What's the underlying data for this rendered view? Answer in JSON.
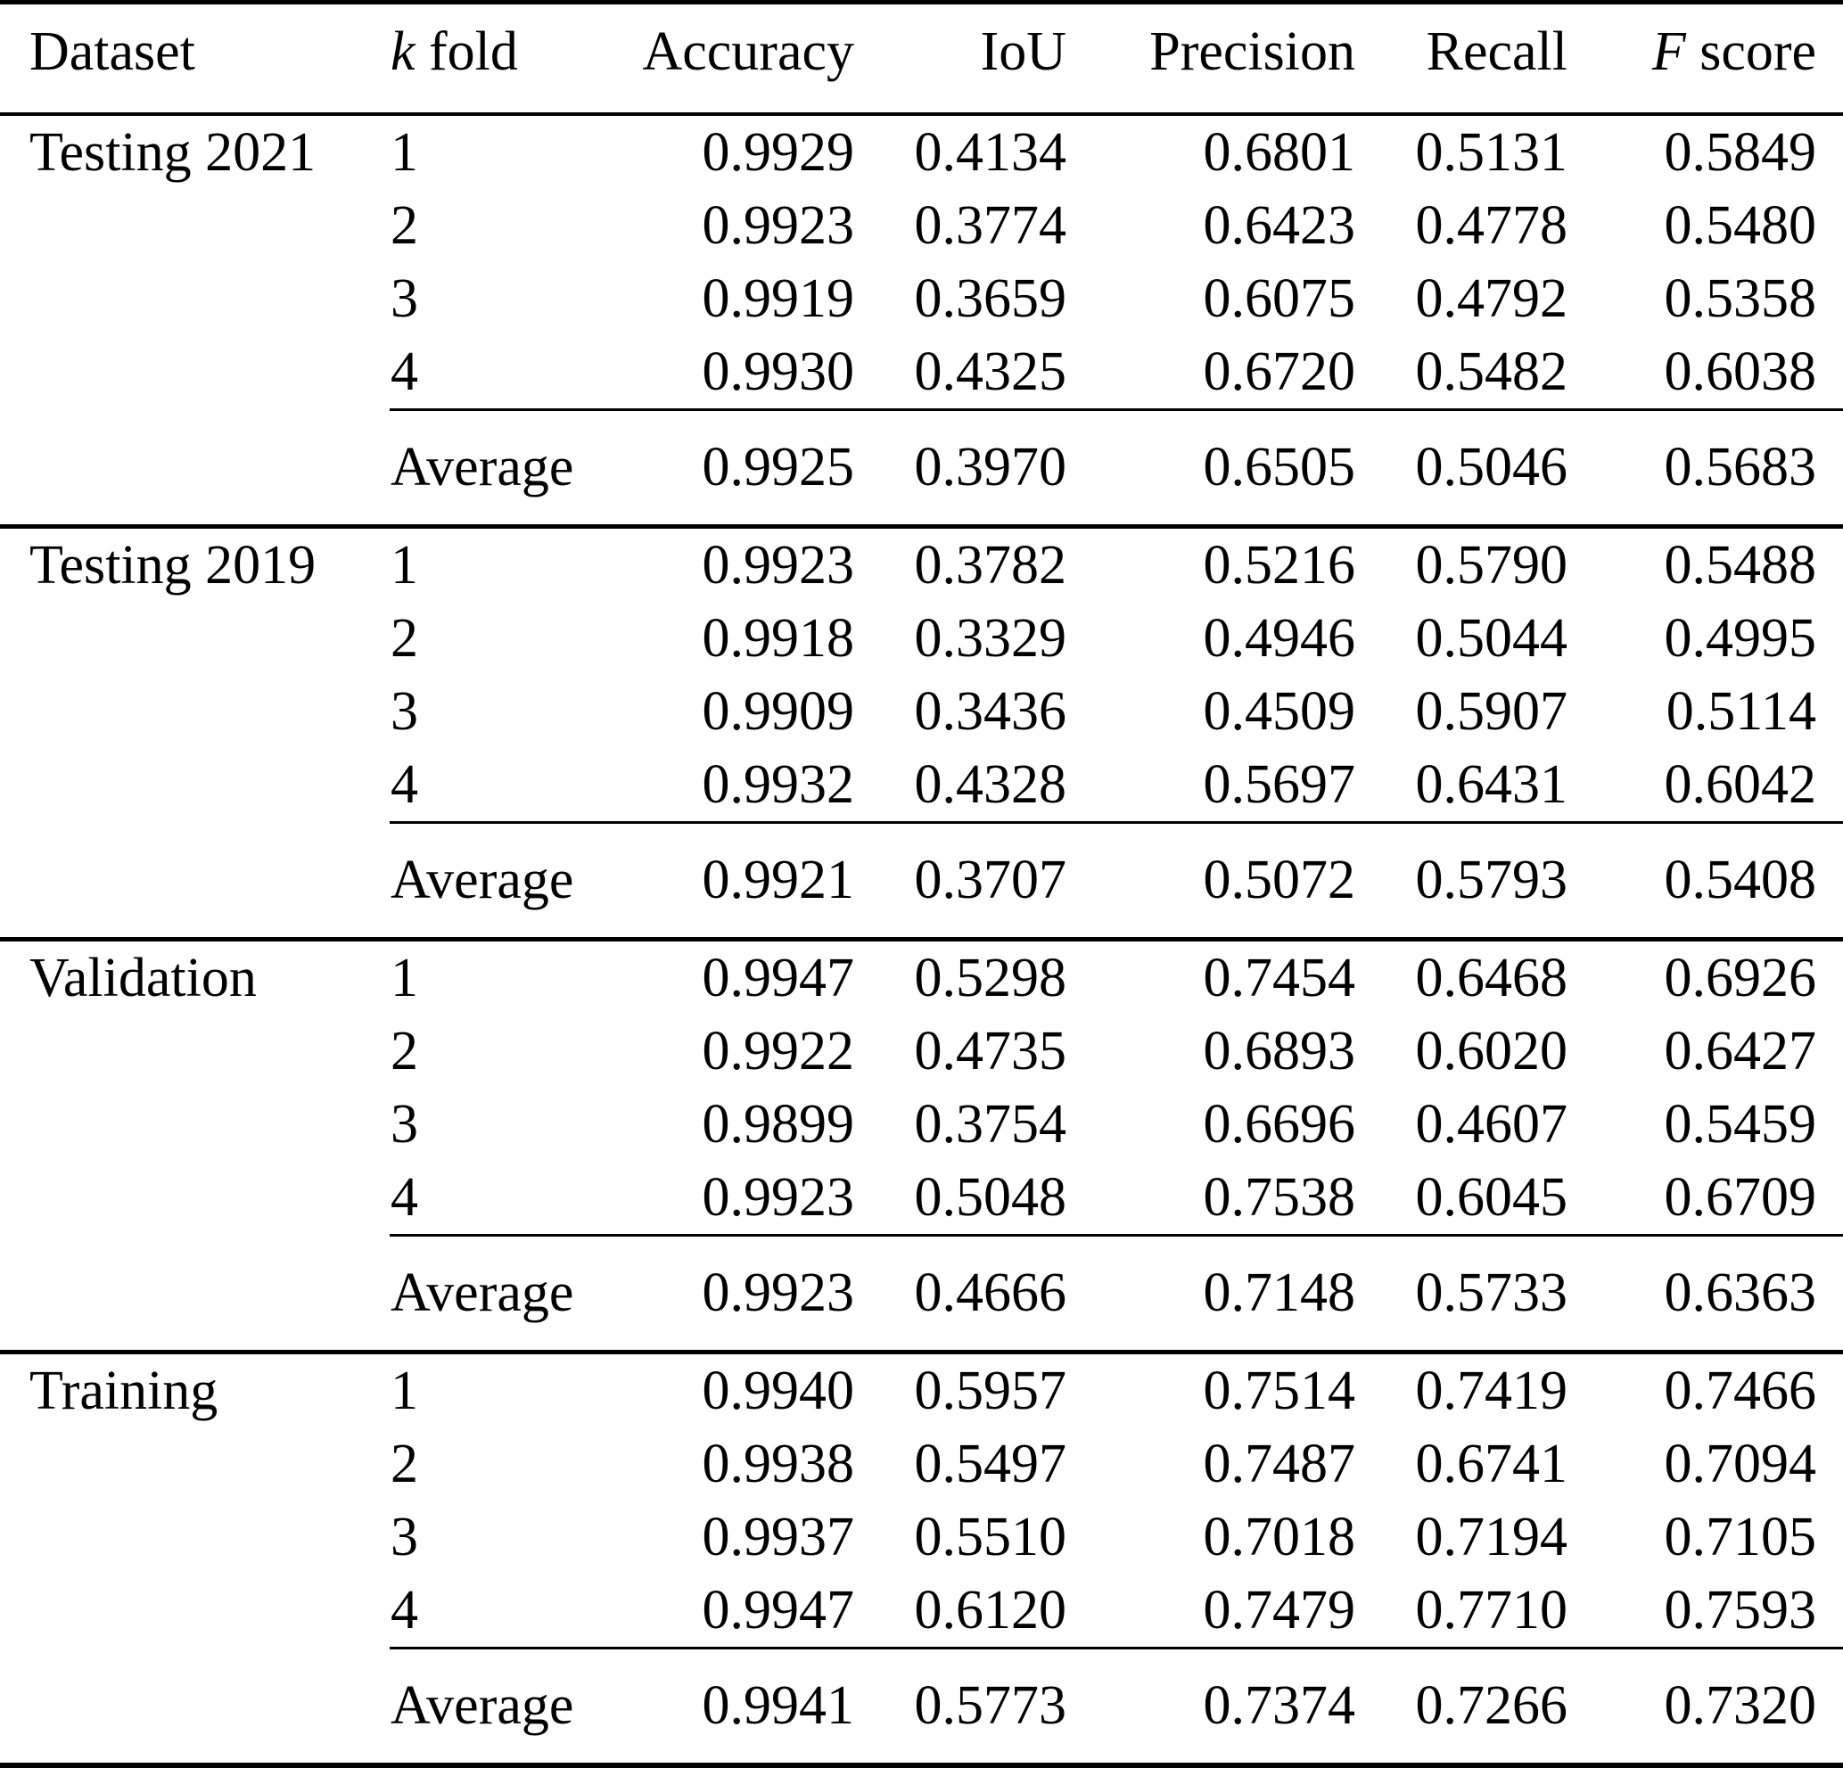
{
  "table": {
    "headers": {
      "dataset": "Dataset",
      "kfold_italic": "k",
      "kfold_rest": " fold",
      "accuracy": "Accuracy",
      "iou": "IoU",
      "precision": "Precision",
      "recall": "Recall",
      "fscore_italic": "F",
      "fscore_rest": " score"
    },
    "average_label": "Average",
    "groups": [
      {
        "dataset": "Testing 2021",
        "rows": [
          {
            "fold": "1",
            "accuracy": "0.9929",
            "iou": "0.4134",
            "precision": "0.6801",
            "recall": "0.5131",
            "fscore": "0.5849"
          },
          {
            "fold": "2",
            "accuracy": "0.9923",
            "iou": "0.3774",
            "precision": "0.6423",
            "recall": "0.4778",
            "fscore": "0.5480"
          },
          {
            "fold": "3",
            "accuracy": "0.9919",
            "iou": "0.3659",
            "precision": "0.6075",
            "recall": "0.4792",
            "fscore": "0.5358"
          },
          {
            "fold": "4",
            "accuracy": "0.9930",
            "iou": "0.4325",
            "precision": "0.6720",
            "recall": "0.5482",
            "fscore": "0.6038"
          }
        ],
        "average": {
          "accuracy": "0.9925",
          "iou": "0.3970",
          "precision": "0.6505",
          "recall": "0.5046",
          "fscore": "0.5683"
        }
      },
      {
        "dataset": "Testing 2019",
        "rows": [
          {
            "fold": "1",
            "accuracy": "0.9923",
            "iou": "0.3782",
            "precision": "0.5216",
            "recall": "0.5790",
            "fscore": "0.5488"
          },
          {
            "fold": "2",
            "accuracy": "0.9918",
            "iou": "0.3329",
            "precision": "0.4946",
            "recall": "0.5044",
            "fscore": "0.4995"
          },
          {
            "fold": "3",
            "accuracy": "0.9909",
            "iou": "0.3436",
            "precision": "0.4509",
            "recall": "0.5907",
            "fscore": "0.5114"
          },
          {
            "fold": "4",
            "accuracy": "0.9932",
            "iou": "0.4328",
            "precision": "0.5697",
            "recall": "0.6431",
            "fscore": "0.6042"
          }
        ],
        "average": {
          "accuracy": "0.9921",
          "iou": "0.3707",
          "precision": "0.5072",
          "recall": "0.5793",
          "fscore": "0.5408"
        }
      },
      {
        "dataset": "Validation",
        "rows": [
          {
            "fold": "1",
            "accuracy": "0.9947",
            "iou": "0.5298",
            "precision": "0.7454",
            "recall": "0.6468",
            "fscore": "0.6926"
          },
          {
            "fold": "2",
            "accuracy": "0.9922",
            "iou": "0.4735",
            "precision": "0.6893",
            "recall": "0.6020",
            "fscore": "0.6427"
          },
          {
            "fold": "3",
            "accuracy": "0.9899",
            "iou": "0.3754",
            "precision": "0.6696",
            "recall": "0.4607",
            "fscore": "0.5459"
          },
          {
            "fold": "4",
            "accuracy": "0.9923",
            "iou": "0.5048",
            "precision": "0.7538",
            "recall": "0.6045",
            "fscore": "0.6709"
          }
        ],
        "average": {
          "accuracy": "0.9923",
          "iou": "0.4666",
          "precision": "0.7148",
          "recall": "0.5733",
          "fscore": "0.6363"
        }
      },
      {
        "dataset": "Training",
        "rows": [
          {
            "fold": "1",
            "accuracy": "0.9940",
            "iou": "0.5957",
            "precision": "0.7514",
            "recall": "0.7419",
            "fscore": "0.7466"
          },
          {
            "fold": "2",
            "accuracy": "0.9938",
            "iou": "0.5497",
            "precision": "0.7487",
            "recall": "0.6741",
            "fscore": "0.7094"
          },
          {
            "fold": "3",
            "accuracy": "0.9937",
            "iou": "0.5510",
            "precision": "0.7018",
            "recall": "0.7194",
            "fscore": "0.7105"
          },
          {
            "fold": "4",
            "accuracy": "0.9947",
            "iou": "0.6120",
            "precision": "0.7479",
            "recall": "0.7710",
            "fscore": "0.7593"
          }
        ],
        "average": {
          "accuracy": "0.9941",
          "iou": "0.5773",
          "precision": "0.7374",
          "recall": "0.7266",
          "fscore": "0.7320"
        }
      }
    ]
  }
}
